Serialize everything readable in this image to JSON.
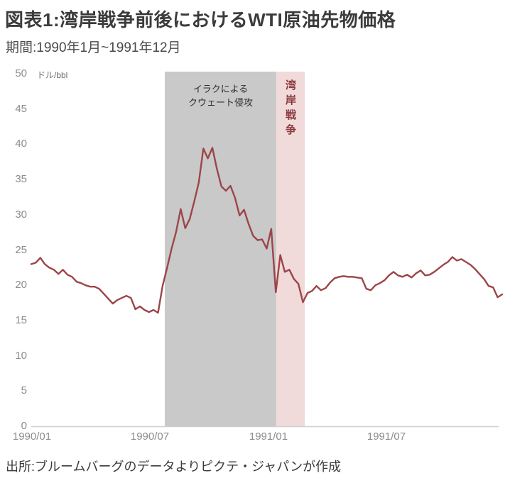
{
  "header": {
    "title": "図表1:湾岸戦争前後におけるWTI原油先物価格",
    "subtitle": "期間:1990年1月~1991年12月"
  },
  "footer": {
    "source": "出所:ブルームバーグのデータよりピクテ・ジャパンが作成"
  },
  "colors": {
    "line": "#9c4549",
    "invasion_band": "#c9c9c9",
    "war_band": "#f0dada",
    "axis": "#cfcfcf",
    "tick_text": "#8c8c8c",
    "war_label_text": "#8b3a3e",
    "invasion_label_text": "#2e2e2e"
  },
  "chart_data": {
    "type": "line",
    "title": "WTI原油先物価格",
    "unit_label": "ドル/bbl",
    "ylabel": "ドル/bbl",
    "xlabel": "",
    "ylim": [
      0,
      50
    ],
    "y_ticks": [
      0,
      5,
      10,
      15,
      20,
      25,
      30,
      35,
      40,
      45,
      50
    ],
    "x_range_months": [
      0,
      24
    ],
    "x_tick_labels": [
      "1990/01",
      "1990/07",
      "1991/01",
      "1991/07"
    ],
    "x_tick_months": [
      0,
      6,
      12,
      18
    ],
    "grid": false,
    "legend": "none",
    "series": [
      {
        "name": "WTI原油先物価格（週次）",
        "frequency": "weekly",
        "start": "1990/01",
        "end": "1991/12",
        "color": "#9c4549",
        "values": [
          23.0,
          23.2,
          23.9,
          23.0,
          22.5,
          22.2,
          21.6,
          22.2,
          21.5,
          21.2,
          20.5,
          20.3,
          20.0,
          19.8,
          19.8,
          19.5,
          18.8,
          18.1,
          17.4,
          17.9,
          18.2,
          18.5,
          18.2,
          16.6,
          17.0,
          16.5,
          16.2,
          16.5,
          16.1,
          19.9,
          22.5,
          25.2,
          27.6,
          30.8,
          28.1,
          29.4,
          31.9,
          34.6,
          39.4,
          38.0,
          39.5,
          36.5,
          34.0,
          33.4,
          34.1,
          32.4,
          29.9,
          30.7,
          28.7,
          27.0,
          26.4,
          26.5,
          25.2,
          28.0,
          19.0,
          24.3,
          21.9,
          22.2,
          20.9,
          20.2,
          17.6,
          18.9,
          19.2,
          19.9,
          19.3,
          19.6,
          20.4,
          21.0,
          21.2,
          21.3,
          21.2,
          21.2,
          21.1,
          21.0,
          19.5,
          19.3,
          20.0,
          20.3,
          20.7,
          21.4,
          21.9,
          21.4,
          21.2,
          21.5,
          21.1,
          21.7,
          22.1,
          21.4,
          21.5,
          21.9,
          22.4,
          22.9,
          23.3,
          24.0,
          23.5,
          23.7,
          23.3,
          22.9,
          22.3,
          21.6,
          20.9,
          19.9,
          19.7,
          18.3,
          18.7
        ]
      }
    ],
    "regions": [
      {
        "name": "iraq-invasion-of-kuwait",
        "label": "イラクによるクウェート侵攻",
        "label_lines": [
          "イラクによる",
          "クウェート侵攻"
        ],
        "start_month": 6.75,
        "end_month": 12.42,
        "color": "#c9c9c9"
      },
      {
        "name": "gulf-war",
        "label": "湾岸戦争",
        "start_month": 12.42,
        "end_month": 13.86,
        "color": "#f0dada"
      }
    ]
  }
}
